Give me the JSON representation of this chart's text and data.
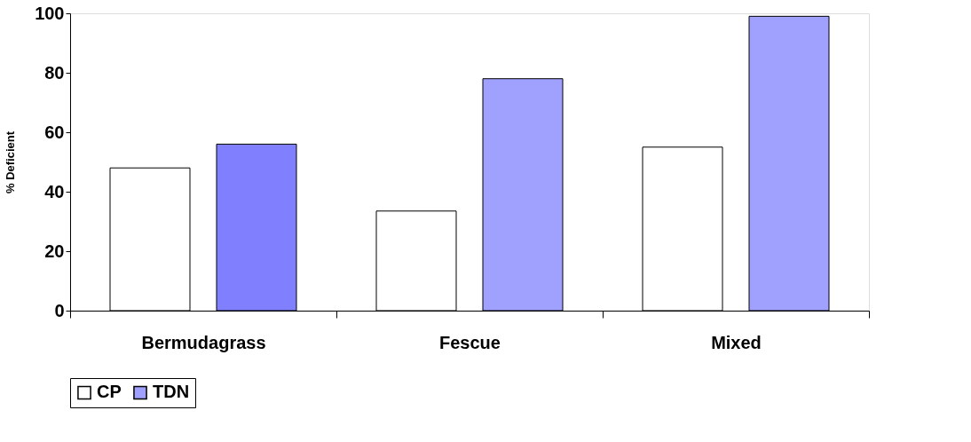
{
  "chart_data": {
    "type": "bar",
    "ylabel": "% Deficient",
    "categories": [
      "Bermudagrass",
      "Fescue",
      "Mixed"
    ],
    "series": [
      {
        "name": "CP",
        "color": "#ffffff",
        "values": [
          48,
          33.5,
          55
        ]
      },
      {
        "name": "TDN",
        "color": "#a0a0ff",
        "colors": [
          "#8080ff",
          "#a0a0ff",
          "#a0a0ff"
        ],
        "values": [
          56,
          78,
          99
        ]
      }
    ],
    "ylim": [
      0,
      100
    ],
    "yticks": [
      0,
      20,
      40,
      60,
      80,
      100
    ],
    "grid": false,
    "legend": "bottom"
  }
}
